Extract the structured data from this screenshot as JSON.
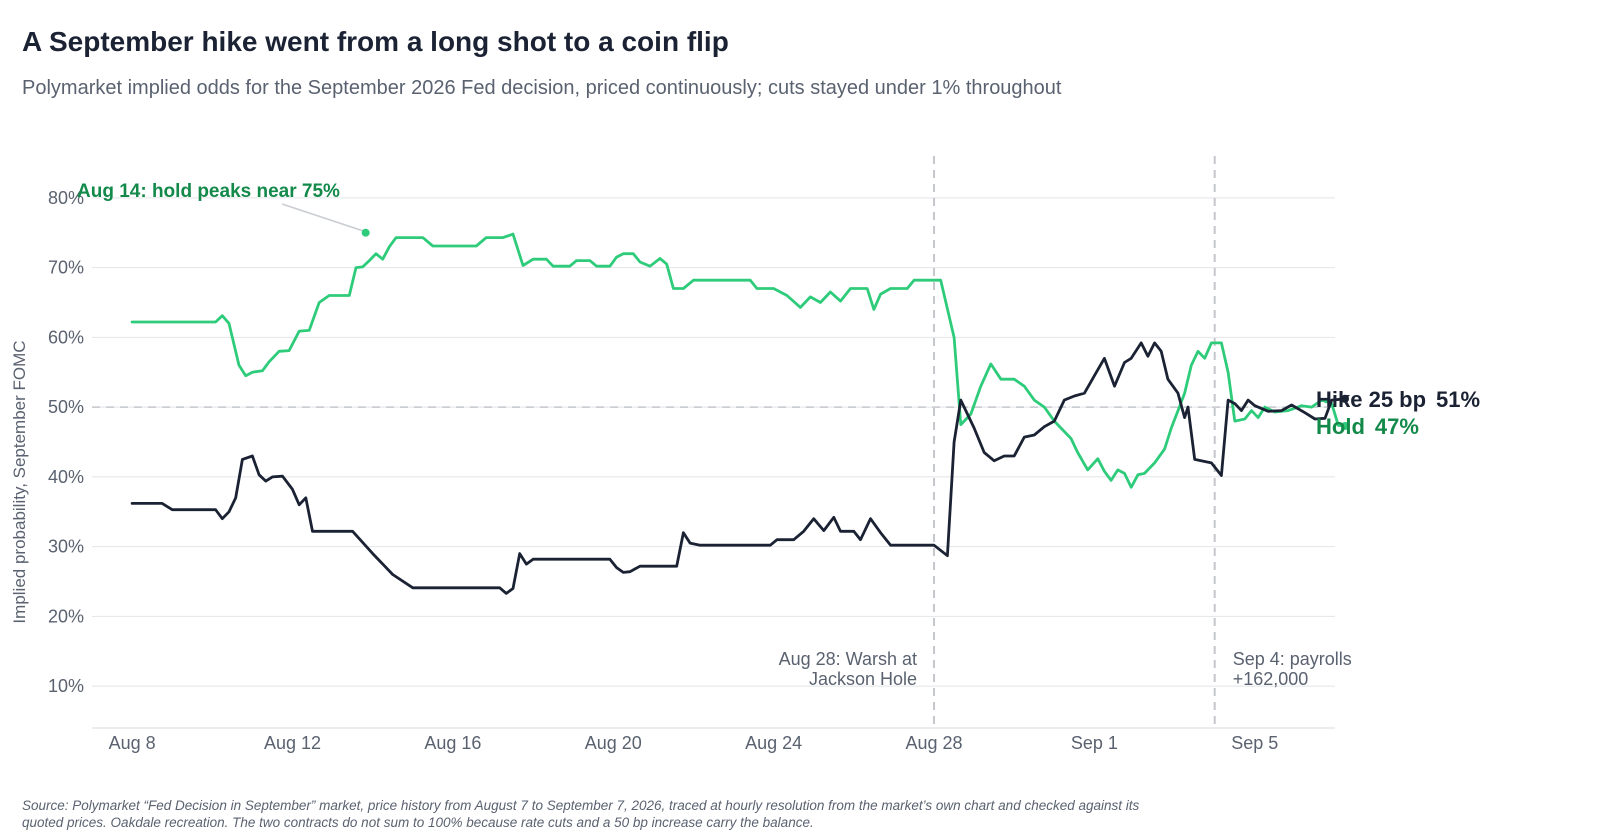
{
  "header": {
    "title": "A September hike went from a long shot to a coin flip",
    "subtitle": "Polymarket implied odds for the September 2026 Fed decision, priced continuously; cuts stayed under 1% throughout"
  },
  "footer": {
    "source": "Source: Polymarket “Fed Decision in September” market, price history from August 7 to September 7, 2026, traced at hourly resolution from the market’s own chart and checked against its quoted prices. Oakdale recreation. The two contracts do not sum to 100% because rate cuts and a 50 bp increase carry the balance."
  },
  "chart_data": {
    "type": "line",
    "ylabel": "Implied probability, September FOMC",
    "ylim": [
      4,
      86
    ],
    "xlim": [
      "2026-08-07",
      "2026-09-07"
    ],
    "yticks": [
      {
        "value": 10,
        "label": "10%"
      },
      {
        "value": 20,
        "label": "20%"
      },
      {
        "value": 30,
        "label": "30%"
      },
      {
        "value": 40,
        "label": "40%"
      },
      {
        "value": 50,
        "label": "50%"
      },
      {
        "value": 60,
        "label": "60%"
      },
      {
        "value": 70,
        "label": "70%"
      },
      {
        "value": 80,
        "label": "80%"
      }
    ],
    "xticks": [
      {
        "value": "2026-08-08",
        "label": "Aug 8"
      },
      {
        "value": "2026-08-12",
        "label": "Aug 12"
      },
      {
        "value": "2026-08-16",
        "label": "Aug 16"
      },
      {
        "value": "2026-08-20",
        "label": "Aug 20"
      },
      {
        "value": "2026-08-24",
        "label": "Aug 24"
      },
      {
        "value": "2026-08-28",
        "label": "Aug 28"
      },
      {
        "value": "2026-09-01",
        "label": "Sep 1"
      },
      {
        "value": "2026-09-05",
        "label": "Sep 5"
      }
    ],
    "reference_line": 50,
    "events": [
      {
        "date": "2026-08-28 00:00",
        "label_lines": [
          "Aug 28: Warsh at",
          "Jackson Hole"
        ],
        "side": "left"
      },
      {
        "date": "2026-09-04 00:00",
        "label_lines": [
          "Sep 4: payrolls",
          "+162,000"
        ],
        "side": "right"
      }
    ],
    "annotation": {
      "date": "2026-08-14 00:00",
      "value": 75,
      "label": "Aug 14: hold peaks near 75%"
    },
    "series": [
      {
        "name": "Hold",
        "end_label": "Hold",
        "end_value_label": "47%",
        "color": "#2ecc7a",
        "label_color": "#13894a",
        "points": [
          [
            "2026-08-08 00:00",
            62.2
          ],
          [
            "2026-08-10 02:00",
            62.2
          ],
          [
            "2026-08-10 06:00",
            63.1
          ],
          [
            "2026-08-10 10:00",
            62.0
          ],
          [
            "2026-08-10 16:00",
            56.0
          ],
          [
            "2026-08-10 20:00",
            54.5
          ],
          [
            "2026-08-11 00:00",
            55.0
          ],
          [
            "2026-08-11 06:00",
            55.2
          ],
          [
            "2026-08-11 10:00",
            56.5
          ],
          [
            "2026-08-11 16:00",
            58.0
          ],
          [
            "2026-08-11 22:00",
            58.1
          ],
          [
            "2026-08-12 04:00",
            60.9
          ],
          [
            "2026-08-12 10:00",
            61.0
          ],
          [
            "2026-08-12 16:00",
            65.0
          ],
          [
            "2026-08-12 22:00",
            66.0
          ],
          [
            "2026-08-13 06:00",
            66.0
          ],
          [
            "2026-08-13 10:00",
            66.0
          ],
          [
            "2026-08-13 14:00",
            70.0
          ],
          [
            "2026-08-13 18:00",
            70.1
          ],
          [
            "2026-08-13 22:00",
            71.0
          ],
          [
            "2026-08-14 02:00",
            72.0
          ],
          [
            "2026-08-14 06:00",
            71.2
          ],
          [
            "2026-08-14 10:00",
            73.0
          ],
          [
            "2026-08-14 14:00",
            74.3
          ],
          [
            "2026-08-15 00:00",
            74.3
          ],
          [
            "2026-08-15 06:00",
            74.3
          ],
          [
            "2026-08-15 12:00",
            73.1
          ],
          [
            "2026-08-16 00:00",
            73.1
          ],
          [
            "2026-08-16 14:00",
            73.1
          ],
          [
            "2026-08-16 20:00",
            74.3
          ],
          [
            "2026-08-17 06:00",
            74.3
          ],
          [
            "2026-08-17 12:00",
            74.8
          ],
          [
            "2026-08-17 18:00",
            70.3
          ],
          [
            "2026-08-18 00:00",
            71.2
          ],
          [
            "2026-08-18 08:00",
            71.2
          ],
          [
            "2026-08-18 12:00",
            70.2
          ],
          [
            "2026-08-18 22:00",
            70.2
          ],
          [
            "2026-08-19 02:00",
            71.0
          ],
          [
            "2026-08-19 10:00",
            71.0
          ],
          [
            "2026-08-19 14:00",
            70.2
          ],
          [
            "2026-08-19 22:00",
            70.2
          ],
          [
            "2026-08-20 02:00",
            71.5
          ],
          [
            "2026-08-20 06:00",
            72.0
          ],
          [
            "2026-08-20 12:00",
            72.0
          ],
          [
            "2026-08-20 16:00",
            70.8
          ],
          [
            "2026-08-20 22:00",
            70.2
          ],
          [
            "2026-08-21 04:00",
            71.3
          ],
          [
            "2026-08-21 08:00",
            70.5
          ],
          [
            "2026-08-21 12:00",
            67.0
          ],
          [
            "2026-08-21 18:00",
            67.0
          ],
          [
            "2026-08-22 00:00",
            68.2
          ],
          [
            "2026-08-23 10:00",
            68.2
          ],
          [
            "2026-08-23 14:00",
            67.0
          ],
          [
            "2026-08-24 00:00",
            67.0
          ],
          [
            "2026-08-24 08:00",
            66.0
          ],
          [
            "2026-08-24 16:00",
            64.3
          ],
          [
            "2026-08-24 22:00",
            65.8
          ],
          [
            "2026-08-25 04:00",
            65.0
          ],
          [
            "2026-08-25 10:00",
            66.5
          ],
          [
            "2026-08-25 16:00",
            65.2
          ],
          [
            "2026-08-25 22:00",
            67.0
          ],
          [
            "2026-08-26 08:00",
            67.0
          ],
          [
            "2026-08-26 12:00",
            64.0
          ],
          [
            "2026-08-26 16:00",
            66.2
          ],
          [
            "2026-08-26 22:00",
            67.0
          ],
          [
            "2026-08-27 08:00",
            67.0
          ],
          [
            "2026-08-27 12:00",
            68.2
          ],
          [
            "2026-08-28 04:00",
            68.2
          ],
          [
            "2026-08-28 12:00",
            60.0
          ],
          [
            "2026-08-28 16:00",
            47.5
          ],
          [
            "2026-08-28 22:00",
            49.0
          ],
          [
            "2026-08-29 04:00",
            53.0
          ],
          [
            "2026-08-29 10:00",
            56.2
          ],
          [
            "2026-08-29 16:00",
            54.0
          ],
          [
            "2026-08-30 00:00",
            54.0
          ],
          [
            "2026-08-30 06:00",
            53.0
          ],
          [
            "2026-08-30 12:00",
            51.0
          ],
          [
            "2026-08-30 18:00",
            50.0
          ],
          [
            "2026-08-31 00:00",
            48.0
          ],
          [
            "2026-08-31 06:00",
            46.5
          ],
          [
            "2026-08-31 10:00",
            45.5
          ],
          [
            "2026-08-31 14:00",
            43.5
          ],
          [
            "2026-08-31 20:00",
            41.0
          ],
          [
            "2026-09-01 02:00",
            42.6
          ],
          [
            "2026-09-01 06:00",
            40.8
          ],
          [
            "2026-09-01 10:00",
            39.5
          ],
          [
            "2026-09-01 14:00",
            41.0
          ],
          [
            "2026-09-01 18:00",
            40.5
          ],
          [
            "2026-09-01 22:00",
            38.5
          ],
          [
            "2026-09-02 02:00",
            40.3
          ],
          [
            "2026-09-02 06:00",
            40.5
          ],
          [
            "2026-09-02 12:00",
            42.0
          ],
          [
            "2026-09-02 18:00",
            44.0
          ],
          [
            "2026-09-02 22:00",
            47.0
          ],
          [
            "2026-09-03 02:00",
            49.5
          ],
          [
            "2026-09-03 06:00",
            52.0
          ],
          [
            "2026-09-03 10:00",
            56.0
          ],
          [
            "2026-09-03 14:00",
            58.0
          ],
          [
            "2026-09-03 18:00",
            57.0
          ],
          [
            "2026-09-03 22:00",
            59.2
          ],
          [
            "2026-09-04 04:00",
            59.2
          ],
          [
            "2026-09-04 08:00",
            55.0
          ],
          [
            "2026-09-04 12:00",
            48.0
          ],
          [
            "2026-09-04 18:00",
            48.3
          ],
          [
            "2026-09-04 22:00",
            49.5
          ],
          [
            "2026-09-05 02:00",
            48.5
          ],
          [
            "2026-09-05 06:00",
            50.0
          ],
          [
            "2026-09-05 12:00",
            49.3
          ],
          [
            "2026-09-05 20:00",
            49.5
          ],
          [
            "2026-09-06 04:00",
            50.2
          ],
          [
            "2026-09-06 10:00",
            50.0
          ],
          [
            "2026-09-06 16:00",
            51.0
          ],
          [
            "2026-09-06 22:00",
            50.5
          ],
          [
            "2026-09-07 02:00",
            47.4
          ],
          [
            "2026-09-07 06:00",
            47.3
          ]
        ]
      },
      {
        "name": "Hike 25 bp",
        "end_label": "Hike 25 bp",
        "end_value_label": "51%",
        "color": "#1a2233",
        "label_color": "#1a2233",
        "points": [
          [
            "2026-08-08 00:00",
            36.2
          ],
          [
            "2026-08-08 18:00",
            36.2
          ],
          [
            "2026-08-09 00:00",
            35.3
          ],
          [
            "2026-08-10 02:00",
            35.3
          ],
          [
            "2026-08-10 06:00",
            34.0
          ],
          [
            "2026-08-10 10:00",
            35.0
          ],
          [
            "2026-08-10 14:00",
            37.0
          ],
          [
            "2026-08-10 18:00",
            42.5
          ],
          [
            "2026-08-11 00:00",
            43.0
          ],
          [
            "2026-08-11 04:00",
            40.3
          ],
          [
            "2026-08-11 08:00",
            39.4
          ],
          [
            "2026-08-11 12:00",
            40.0
          ],
          [
            "2026-08-11 18:00",
            40.1
          ],
          [
            "2026-08-12 00:00",
            38.2
          ],
          [
            "2026-08-12 04:00",
            36.0
          ],
          [
            "2026-08-12 08:00",
            37.0
          ],
          [
            "2026-08-12 12:00",
            32.2
          ],
          [
            "2026-08-13 12:00",
            32.2
          ],
          [
            "2026-08-14 00:00",
            29.0
          ],
          [
            "2026-08-14 12:00",
            26.0
          ],
          [
            "2026-08-15 00:00",
            24.1
          ],
          [
            "2026-08-17 04:00",
            24.1
          ],
          [
            "2026-08-17 08:00",
            23.3
          ],
          [
            "2026-08-17 12:00",
            24.0
          ],
          [
            "2026-08-17 16:00",
            29.0
          ],
          [
            "2026-08-17 20:00",
            27.5
          ],
          [
            "2026-08-18 00:00",
            28.2
          ],
          [
            "2026-08-19 22:00",
            28.2
          ],
          [
            "2026-08-20 02:00",
            27.0
          ],
          [
            "2026-08-20 06:00",
            26.3
          ],
          [
            "2026-08-20 10:00",
            26.4
          ],
          [
            "2026-08-20 16:00",
            27.2
          ],
          [
            "2026-08-21 14:00",
            27.2
          ],
          [
            "2026-08-21 18:00",
            32.0
          ],
          [
            "2026-08-21 22:00",
            30.5
          ],
          [
            "2026-08-22 04:00",
            30.2
          ],
          [
            "2026-08-23 22:00",
            30.2
          ],
          [
            "2026-08-24 02:00",
            31.0
          ],
          [
            "2026-08-24 12:00",
            31.0
          ],
          [
            "2026-08-24 18:00",
            32.2
          ],
          [
            "2026-08-25 00:00",
            34.0
          ],
          [
            "2026-08-25 06:00",
            32.3
          ],
          [
            "2026-08-25 12:00",
            34.2
          ],
          [
            "2026-08-25 16:00",
            32.2
          ],
          [
            "2026-08-26 00:00",
            32.2
          ],
          [
            "2026-08-26 04:00",
            31.0
          ],
          [
            "2026-08-26 10:00",
            34.0
          ],
          [
            "2026-08-26 16:00",
            32.0
          ],
          [
            "2026-08-26 22:00",
            30.2
          ],
          [
            "2026-08-27 12:00",
            30.2
          ],
          [
            "2026-08-28 00:00",
            30.2
          ],
          [
            "2026-08-28 08:00",
            28.7
          ],
          [
            "2026-08-28 12:00",
            45.0
          ],
          [
            "2026-08-28 16:00",
            51.0
          ],
          [
            "2026-08-29 00:00",
            47.0
          ],
          [
            "2026-08-29 06:00",
            43.5
          ],
          [
            "2026-08-29 12:00",
            42.3
          ],
          [
            "2026-08-29 18:00",
            43.0
          ],
          [
            "2026-08-30 00:00",
            43.0
          ],
          [
            "2026-08-30 06:00",
            45.7
          ],
          [
            "2026-08-30 12:00",
            46.0
          ],
          [
            "2026-08-30 18:00",
            47.2
          ],
          [
            "2026-08-31 00:00",
            48.0
          ],
          [
            "2026-08-31 06:00",
            51.0
          ],
          [
            "2026-08-31 12:00",
            51.6
          ],
          [
            "2026-08-31 18:00",
            52.0
          ],
          [
            "2026-09-01 00:00",
            54.5
          ],
          [
            "2026-09-01 06:00",
            57.0
          ],
          [
            "2026-09-01 12:00",
            53.0
          ],
          [
            "2026-09-01 18:00",
            56.4
          ],
          [
            "2026-09-01 22:00",
            57.0
          ],
          [
            "2026-09-02 04:00",
            59.2
          ],
          [
            "2026-09-02 08:00",
            57.3
          ],
          [
            "2026-09-02 12:00",
            59.2
          ],
          [
            "2026-09-02 16:00",
            58.0
          ],
          [
            "2026-09-02 20:00",
            54.0
          ],
          [
            "2026-09-03 02:00",
            52.0
          ],
          [
            "2026-09-03 06:00",
            48.5
          ],
          [
            "2026-09-03 08:00",
            50.0
          ],
          [
            "2026-09-03 12:00",
            42.5
          ],
          [
            "2026-09-03 18:00",
            42.2
          ],
          [
            "2026-09-03 22:00",
            42.0
          ],
          [
            "2026-09-04 04:00",
            40.2
          ],
          [
            "2026-09-04 08:00",
            51.0
          ],
          [
            "2026-09-04 12:00",
            50.5
          ],
          [
            "2026-09-04 16:00",
            49.5
          ],
          [
            "2026-09-04 20:00",
            51.0
          ],
          [
            "2026-09-05 00:00",
            50.2
          ],
          [
            "2026-09-05 08:00",
            49.4
          ],
          [
            "2026-09-05 16:00",
            49.5
          ],
          [
            "2026-09-05 22:00",
            50.3
          ],
          [
            "2026-09-06 06:00",
            49.2
          ],
          [
            "2026-09-06 12:00",
            48.3
          ],
          [
            "2026-09-06 18:00",
            48.4
          ],
          [
            "2026-09-06 22:00",
            51.0
          ],
          [
            "2026-09-07 06:00",
            51.2
          ]
        ]
      }
    ]
  }
}
